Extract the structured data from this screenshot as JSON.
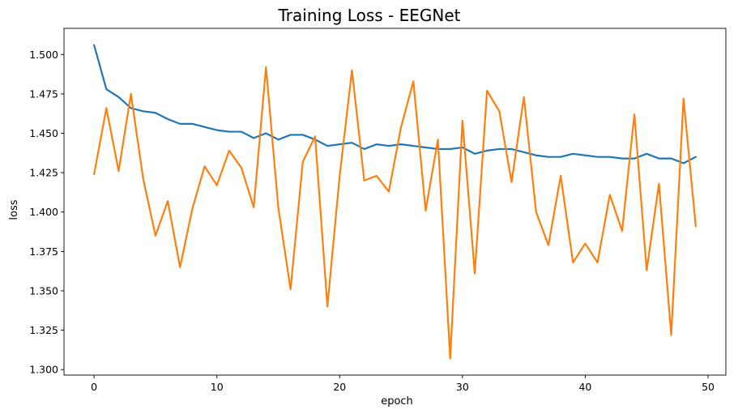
{
  "chart_data": {
    "type": "line",
    "title": "Training Loss - EEGNet",
    "xlabel": "epoch",
    "ylabel": "loss",
    "xlim": [
      -2.45,
      51.45
    ],
    "ylim": [
      1.2965,
      1.5166
    ],
    "xticks": [
      0,
      10,
      20,
      30,
      40,
      50
    ],
    "yticks": [
      1.3,
      1.325,
      1.35,
      1.375,
      1.4,
      1.425,
      1.45,
      1.475,
      1.5
    ],
    "ytick_decimals": 3,
    "grid": false,
    "legend": "none",
    "x": [
      0,
      1,
      2,
      3,
      4,
      5,
      6,
      7,
      8,
      9,
      10,
      11,
      12,
      13,
      14,
      15,
      16,
      17,
      18,
      19,
      20,
      21,
      22,
      23,
      24,
      25,
      26,
      27,
      28,
      29,
      30,
      31,
      32,
      33,
      34,
      35,
      36,
      37,
      38,
      39,
      40,
      41,
      42,
      43,
      44,
      45,
      46,
      47,
      48,
      49
    ],
    "series": [
      {
        "color": "#1f77b4",
        "values": [
          1.506,
          1.478,
          1.473,
          1.466,
          1.464,
          1.463,
          1.459,
          1.456,
          1.456,
          1.454,
          1.452,
          1.451,
          1.451,
          1.447,
          1.45,
          1.446,
          1.449,
          1.449,
          1.446,
          1.442,
          1.443,
          1.444,
          1.44,
          1.443,
          1.442,
          1.443,
          1.442,
          1.441,
          1.44,
          1.44,
          1.441,
          1.437,
          1.439,
          1.44,
          1.44,
          1.438,
          1.436,
          1.435,
          1.435,
          1.437,
          1.436,
          1.435,
          1.435,
          1.434,
          1.434,
          1.437,
          1.434,
          1.434,
          1.431,
          1.435
        ]
      },
      {
        "color": "#ff7f0e",
        "values": [
          1.424,
          1.466,
          1.426,
          1.475,
          1.421,
          1.385,
          1.407,
          1.365,
          1.402,
          1.429,
          1.417,
          1.439,
          1.428,
          1.403,
          1.492,
          1.403,
          1.351,
          1.432,
          1.448,
          1.34,
          1.423,
          1.49,
          1.42,
          1.423,
          1.413,
          1.454,
          1.483,
          1.401,
          1.446,
          1.307,
          1.458,
          1.361,
          1.477,
          1.464,
          1.419,
          1.473,
          1.4,
          1.379,
          1.423,
          1.368,
          1.38,
          1.368,
          1.411,
          1.388,
          1.462,
          1.363,
          1.418,
          1.322,
          1.472,
          1.391
        ]
      }
    ]
  }
}
